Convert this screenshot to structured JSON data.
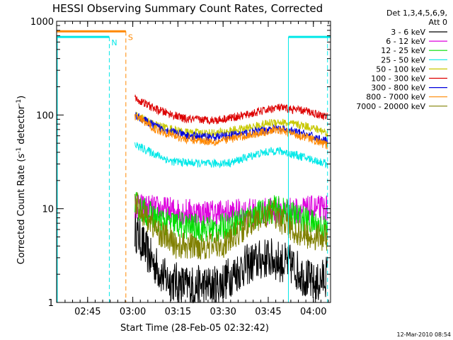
{
  "chart_data": {
    "type": "line",
    "title": "HESSI Observing Summary Count Rates, Corrected",
    "xlabel": "Start Time (28-Feb-05 02:32:42)",
    "ylabel_main": "Corrected Count Rate (s",
    "ylabel_sup1": "-1",
    "ylabel_mid": " detector",
    "ylabel_sup2": "-1",
    "ylabel_end": ")",
    "yscale": "log",
    "ylim": [
      1,
      1000
    ],
    "xlim_minutes": [
      2.0,
      93.0
    ],
    "x_origin": "02:32:42",
    "x_tick_labels": [
      "02:45",
      "03:00",
      "03:15",
      "03:30",
      "03:45",
      "04:00"
    ],
    "x_tick_minutes": [
      12.3,
      27.3,
      42.3,
      57.3,
      72.3,
      87.3
    ],
    "y_tick_labels": [
      "1",
      "10",
      "100",
      "1000"
    ],
    "y_ticks": [
      1,
      10,
      100,
      1000
    ],
    "legend_header": [
      "Det 1,3,4,5,6,9,",
      "Att 0"
    ],
    "series": [
      {
        "name": "3 - 6 keV",
        "color": "#000000",
        "data_start_min": 28,
        "data_end_min": 92,
        "key_points": [
          [
            28,
            6
          ],
          [
            33,
            3
          ],
          [
            38,
            1.8
          ],
          [
            45,
            1.5
          ],
          [
            55,
            1.5
          ],
          [
            65,
            2.5
          ],
          [
            72,
            3
          ],
          [
            80,
            2.5
          ],
          [
            88,
            1.5
          ],
          [
            92,
            2
          ]
        ]
      },
      {
        "name": "6 - 12 keV",
        "color": "#dd00dd",
        "data_start_min": 28,
        "data_end_min": 92,
        "key_points": [
          [
            28,
            10.5
          ],
          [
            40,
            9.5
          ],
          [
            50,
            9
          ],
          [
            60,
            9
          ],
          [
            70,
            9.3
          ],
          [
            80,
            9.5
          ],
          [
            92,
            10
          ]
        ]
      },
      {
        "name": "12 - 25 keV",
        "color": "#00dd00",
        "data_start_min": 28,
        "data_end_min": 92,
        "key_points": [
          [
            28,
            11
          ],
          [
            36,
            7.5
          ],
          [
            45,
            6.5
          ],
          [
            55,
            6
          ],
          [
            65,
            8
          ],
          [
            75,
            10
          ],
          [
            85,
            7.5
          ],
          [
            92,
            6
          ]
        ]
      },
      {
        "name": "25 - 50 keV",
        "color": "#00e8e8",
        "data_start_min": 28,
        "data_end_min": 92,
        "key_points": [
          [
            28,
            48
          ],
          [
            40,
            32
          ],
          [
            52,
            30
          ],
          [
            60,
            31
          ],
          [
            68,
            38
          ],
          [
            75,
            42
          ],
          [
            82,
            37
          ],
          [
            92,
            30
          ]
        ]
      },
      {
        "name": "50 - 100 keV",
        "color": "#c8c800",
        "data_start_min": 28,
        "data_end_min": 92,
        "key_points": [
          [
            28,
            100
          ],
          [
            35,
            78
          ],
          [
            45,
            65
          ],
          [
            55,
            64
          ],
          [
            65,
            72
          ],
          [
            75,
            85
          ],
          [
            85,
            76
          ],
          [
            92,
            65
          ]
        ]
      },
      {
        "name": "100 - 300 keV",
        "color": "#dd0000",
        "data_start_min": 28,
        "data_end_min": 92,
        "key_points": [
          [
            28,
            150
          ],
          [
            35,
            115
          ],
          [
            45,
            90
          ],
          [
            55,
            88
          ],
          [
            65,
            100
          ],
          [
            75,
            120
          ],
          [
            85,
            110
          ],
          [
            92,
            95
          ]
        ]
      },
      {
        "name": "300 - 800 keV",
        "color": "#0000dd",
        "data_start_min": 28,
        "data_end_min": 92,
        "key_points": [
          [
            28,
            100
          ],
          [
            35,
            75
          ],
          [
            45,
            60
          ],
          [
            55,
            58
          ],
          [
            65,
            64
          ],
          [
            75,
            72
          ],
          [
            85,
            62
          ],
          [
            92,
            52
          ]
        ]
      },
      {
        "name": "800 - 7000 keV",
        "color": "#ff8800",
        "data_start_min": 28,
        "data_end_min": 92,
        "key_points": [
          [
            28,
            98
          ],
          [
            35,
            70
          ],
          [
            45,
            55
          ],
          [
            55,
            52
          ],
          [
            65,
            60
          ],
          [
            75,
            70
          ],
          [
            85,
            58
          ],
          [
            92,
            47
          ]
        ]
      },
      {
        "name": "7000 - 20000 keV",
        "color": "#808000",
        "data_start_min": 28,
        "data_end_min": 92,
        "key_points": [
          [
            28,
            12
          ],
          [
            35,
            6
          ],
          [
            42,
            4
          ],
          [
            50,
            4
          ],
          [
            58,
            4.2
          ],
          [
            66,
            7
          ],
          [
            74,
            9
          ],
          [
            80,
            6
          ],
          [
            86,
            5
          ],
          [
            92,
            5
          ]
        ]
      }
    ],
    "annotations": [
      {
        "label": "N",
        "kind": "night",
        "color": "#00e8e8",
        "bar_value": 680,
        "bar_start_min": 2.0,
        "bar_end_min": 19.5,
        "dashed_at_min": [
          19.5
        ]
      },
      {
        "label": "S",
        "kind": "saa",
        "color": "#ff8800",
        "bar_value": 780,
        "bar_start_min": 2.0,
        "bar_end_min": 25.0,
        "dashed_at_min": [
          25.0
        ]
      },
      {
        "label": "",
        "kind": "night",
        "color": "#00e8e8",
        "bar_value": 680,
        "bar_start_min": 79.0,
        "bar_end_min": 93.0,
        "solid_at_min": [
          79.0
        ],
        "dashed_at_min": [
          92.0
        ]
      }
    ],
    "solid_left_line_min": 2.0
  },
  "timestamp": "12-Mar-2010 08:54"
}
